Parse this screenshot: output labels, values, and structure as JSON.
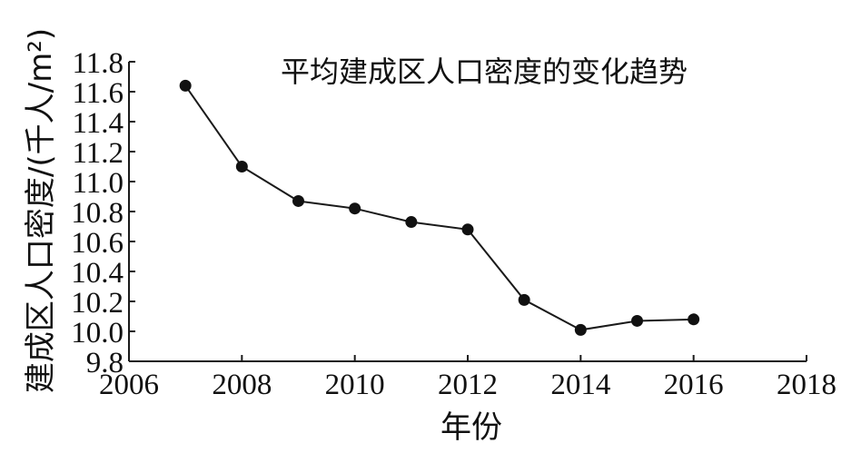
{
  "chart_data": {
    "type": "line",
    "title": "平均建成区人口密度的变化趋势",
    "xlabel": "年份",
    "ylabel": "建成区人口密度/(千人/m²)",
    "x": [
      2007,
      2008,
      2009,
      2010,
      2011,
      2012,
      2013,
      2014,
      2015,
      2016
    ],
    "values": [
      11.64,
      11.1,
      10.87,
      10.82,
      10.73,
      10.68,
      10.21,
      10.01,
      10.07,
      10.08
    ],
    "xlim": [
      2006,
      2018
    ],
    "ylim": [
      9.8,
      11.8
    ],
    "xticks": [
      "2006",
      "2008",
      "2010",
      "2012",
      "2014",
      "2016",
      "2018"
    ],
    "yticks": [
      "9.8",
      "10.0",
      "10.2",
      "10.4",
      "10.6",
      "10.8",
      "11.0",
      "11.2",
      "11.4",
      "11.6",
      "11.8"
    ],
    "grid": false,
    "legend": "none",
    "colors": {
      "line": "#1a1a1a",
      "marker": "#111111",
      "axis": "#1a1a1a"
    }
  }
}
